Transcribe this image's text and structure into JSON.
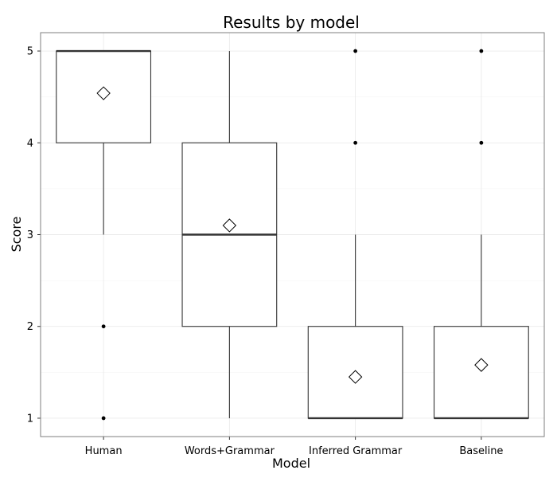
{
  "chart_data": {
    "type": "boxplot",
    "title": "Results by model",
    "xlabel": "Model",
    "ylabel": "Score",
    "ylim": [
      0.8,
      5.2
    ],
    "yticks": [
      1,
      2,
      3,
      4,
      5
    ],
    "grid": true,
    "legend": "none",
    "categories": [
      "Human",
      "Words+Grammar",
      "Inferred Grammar",
      "Baseline"
    ],
    "boxes": [
      {
        "category": "Human",
        "whisker_low": 3,
        "q1": 4,
        "median": 5,
        "q3": 5,
        "whisker_high": 5,
        "mean": 4.54,
        "outliers": [
          2,
          1
        ]
      },
      {
        "category": "Words+Grammar",
        "whisker_low": 1,
        "q1": 2,
        "median": 3,
        "q3": 4,
        "whisker_high": 5,
        "mean": 3.1,
        "outliers": []
      },
      {
        "category": "Inferred Grammar",
        "whisker_low": 1,
        "q1": 1,
        "median": 1,
        "q3": 2,
        "whisker_high": 3,
        "mean": 1.45,
        "outliers": [
          5,
          4
        ]
      },
      {
        "category": "Baseline",
        "whisker_low": 1,
        "q1": 1,
        "median": 1,
        "q3": 2,
        "whisker_high": 3,
        "mean": 1.58,
        "outliers": [
          5,
          4
        ]
      }
    ]
  }
}
